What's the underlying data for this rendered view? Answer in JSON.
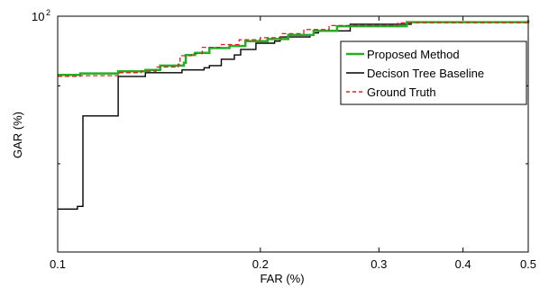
{
  "chart_data": {
    "type": "line",
    "xlabel": "FAR (%)",
    "ylabel": "GAR (%)",
    "xlim": [
      0.1,
      0.5
    ],
    "ylim": [
      70,
      100
    ],
    "x_scale": "log",
    "y_scale": "log",
    "x_tick_labels": [
      "0.1",
      "0.2",
      "0.3",
      "0.4",
      "0.5"
    ],
    "x_ticks": [
      0.1,
      0.2,
      0.3,
      0.4,
      0.5
    ],
    "y_tick_labels": [
      "10",
      "2"
    ],
    "y_ticks": [
      100
    ],
    "grid": false,
    "legend_position": "top-right",
    "series": [
      {
        "name": "Proposed Method",
        "color": "#22b022",
        "style": "solid",
        "step": true,
        "x": [
          0.1,
          0.108,
          0.123,
          0.135,
          0.142,
          0.154,
          0.155,
          0.16,
          0.168,
          0.18,
          0.19,
          0.205,
          0.22,
          0.24,
          0.26,
          0.33,
          0.5
        ],
        "y": [
          91.5,
          91.7,
          92.0,
          92.2,
          92.8,
          93.2,
          94.3,
          94.6,
          95.3,
          95.6,
          96.3,
          96.6,
          97.2,
          97.8,
          98.5,
          99.1,
          99.4
        ]
      },
      {
        "name": "Decison Tree Baseline",
        "color": "#000000",
        "style": "solid",
        "step": true,
        "x": [
          0.1,
          0.107,
          0.109,
          0.122,
          0.123,
          0.135,
          0.153,
          0.165,
          0.168,
          0.175,
          0.183,
          0.187,
          0.197,
          0.21,
          0.214,
          0.237,
          0.24,
          0.244,
          0.272,
          0.335,
          0.5
        ],
        "y": [
          74.7,
          75.0,
          86.0,
          86.0,
          91.3,
          91.8,
          92.2,
          92.5,
          92.8,
          93.7,
          94.3,
          95.1,
          96.0,
          96.3,
          96.9,
          97.2,
          97.5,
          97.8,
          98.8,
          99.1,
          99.4
        ]
      },
      {
        "name": "Ground Truth",
        "color": "#e02020",
        "style": "dashed",
        "step": true,
        "x": [
          0.1,
          0.108,
          0.123,
          0.133,
          0.14,
          0.151,
          0.152,
          0.158,
          0.164,
          0.175,
          0.186,
          0.2,
          0.215,
          0.232,
          0.253,
          0.32,
          0.5
        ],
        "y": [
          91.3,
          91.4,
          91.8,
          92.0,
          92.6,
          93.0,
          94.2,
          94.5,
          95.4,
          95.8,
          96.5,
          96.8,
          97.4,
          98.0,
          98.6,
          99.0,
          99.4
        ]
      }
    ]
  }
}
